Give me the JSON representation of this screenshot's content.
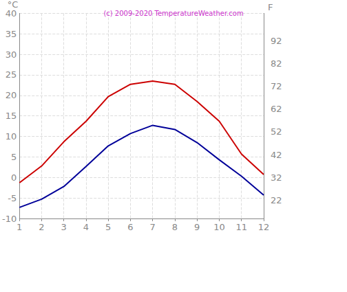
{
  "chart_data": {
    "type": "line",
    "title": "(c) 2009-2020 TemperatureWeather.com",
    "y_label": "°C",
    "y2_label": "F",
    "x": [
      1,
      2,
      3,
      4,
      5,
      6,
      7,
      8,
      9,
      10,
      11,
      12
    ],
    "xlim": [
      1,
      12
    ],
    "xticks": [
      1,
      2,
      3,
      4,
      5,
      6,
      7,
      8,
      9,
      10,
      11,
      12
    ],
    "ylim": [
      -10,
      40
    ],
    "yticks": [
      -5,
      0,
      5,
      10,
      15,
      20,
      25,
      30,
      35
    ],
    "y2lim": [
      14,
      104
    ],
    "y2ticks": [
      22,
      32,
      42,
      52,
      62,
      72,
      82,
      92
    ],
    "grid": true,
    "series": [
      {
        "color": "#cc0000",
        "values": [
          -1.3,
          2.8,
          8.7,
          13.7,
          19.7,
          22.7,
          23.5,
          22.7,
          18.5,
          13.7,
          5.7,
          0.7
        ]
      },
      {
        "color": "#000099",
        "values": [
          -7.3,
          -5.3,
          -2.2,
          2.7,
          7.7,
          10.7,
          12.7,
          11.7,
          8.5,
          4.3,
          0.3,
          -4.3
        ]
      }
    ]
  }
}
